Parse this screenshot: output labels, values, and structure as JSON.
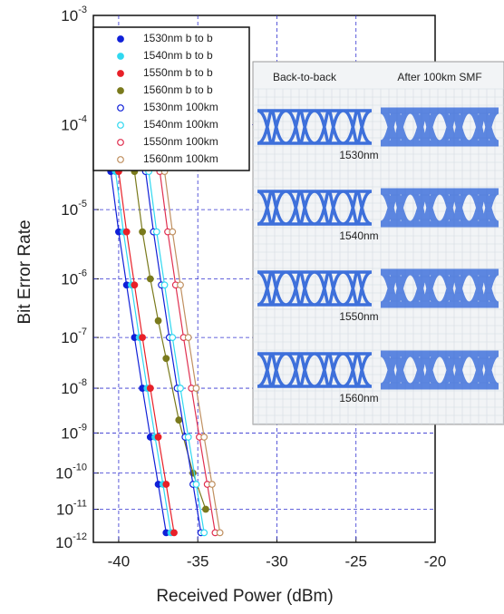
{
  "chart_data": {
    "type": "scatter",
    "x_label": "Received Power (dBm)",
    "y_label": "Bit Error Rate",
    "yscale": "neg-log-log",
    "grid": true,
    "legend": "upper left",
    "xlim": [
      -41.6,
      -20
    ],
    "xticks": [
      -40,
      -35,
      -30,
      -25,
      -20
    ],
    "ylim": [
      1e-12,
      0.001
    ],
    "yticks": [
      {
        "value": 0.001,
        "label": "10^-3"
      },
      {
        "value": 0.0001,
        "label": "10^-4"
      },
      {
        "value": 1e-05,
        "label": "10^-5"
      },
      {
        "value": 1e-06,
        "label": "10^-6"
      },
      {
        "value": 1e-07,
        "label": "10^-7"
      },
      {
        "value": 1e-08,
        "label": "10^-8"
      },
      {
        "value": 1e-09,
        "label": "10^-9"
      },
      {
        "value": 1e-10,
        "label": "10^-10"
      },
      {
        "value": 1e-11,
        "label": "10^-11"
      },
      {
        "value": 1e-12,
        "label": "10^-12"
      }
    ],
    "series": [
      {
        "name": "1530nm b to b",
        "color": "#1020d8",
        "marker": "filled",
        "x": [
          -40.5,
          -40,
          -39.5,
          -39,
          -38.5,
          -38,
          -37.5,
          -37
        ],
        "values": [
          3e-05,
          5e-06,
          8e-07,
          1e-07,
          1e-08,
          8e-10,
          5e-11,
          2e-12
        ]
      },
      {
        "name": "1540nm b to b",
        "color": "#30d8f0",
        "marker": "filled",
        "x": [
          -40.2,
          -39.7,
          -39.2,
          -38.7,
          -38.2,
          -37.7,
          -37.2,
          -36.7
        ],
        "values": [
          3e-05,
          5e-06,
          8e-07,
          1e-07,
          1e-08,
          8e-10,
          5e-11,
          2e-12
        ]
      },
      {
        "name": "1550nm b to b",
        "color": "#e82028",
        "marker": "filled",
        "x": [
          -40,
          -39.5,
          -39,
          -38.5,
          -38,
          -37.5,
          -37,
          -36.5
        ],
        "values": [
          3e-05,
          5e-06,
          8e-07,
          1e-07,
          1e-08,
          8e-10,
          5e-11,
          2e-12
        ]
      },
      {
        "name": "1560nm b to b",
        "color": "#7a7a1c",
        "marker": "filled",
        "x": [
          -39,
          -38.5,
          -38,
          -37.5,
          -37,
          -36.2,
          -35.3,
          -34.5
        ],
        "values": [
          3e-05,
          5e-06,
          1e-06,
          2e-07,
          4e-08,
          2e-09,
          1e-10,
          1e-11
        ]
      },
      {
        "name": "1530nm 100km",
        "color": "#1020d8",
        "marker": "open",
        "x": [
          -38.3,
          -37.8,
          -37.3,
          -36.8,
          -36.3,
          -35.8,
          -35.3,
          -34.8
        ],
        "values": [
          3e-05,
          5e-06,
          8e-07,
          1e-07,
          1e-08,
          8e-10,
          5e-11,
          2e-12
        ]
      },
      {
        "name": "1540nm 100km",
        "color": "#30d8f0",
        "marker": "open",
        "x": [
          -38.1,
          -37.6,
          -37.1,
          -36.6,
          -36.1,
          -35.6,
          -35.1,
          -34.6
        ],
        "values": [
          3e-05,
          5e-06,
          8e-07,
          1e-07,
          1e-08,
          8e-10,
          5e-11,
          2e-12
        ]
      },
      {
        "name": "1550nm 100km",
        "color": "#e03050",
        "marker": "open",
        "x": [
          -37.4,
          -36.9,
          -36.4,
          -35.9,
          -35.4,
          -34.9,
          -34.4,
          -33.9
        ],
        "values": [
          3e-05,
          5e-06,
          8e-07,
          1e-07,
          1e-08,
          8e-10,
          5e-11,
          2e-12
        ]
      },
      {
        "name": "1560nm 100km",
        "color": "#c09060",
        "marker": "open",
        "x": [
          -37.1,
          -36.6,
          -36.1,
          -35.6,
          -35.1,
          -34.6,
          -34.1,
          -33.6
        ],
        "values": [
          3e-05,
          5e-06,
          8e-07,
          1e-07,
          1e-08,
          8e-10,
          5e-11,
          2e-12
        ]
      }
    ],
    "inset": {
      "headers": [
        "Back-to-back",
        "After 100km SMF"
      ],
      "labels": [
        "1530nm",
        "1540nm",
        "1550nm",
        "1560nm"
      ]
    }
  }
}
